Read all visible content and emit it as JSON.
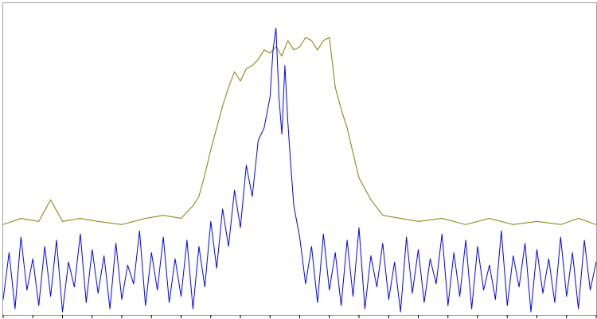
{
  "chart_data": {
    "type": "line",
    "title": "",
    "xlabel": "",
    "ylabel": "",
    "xlim": [
      0,
      100
    ],
    "ylim": [
      0,
      100
    ],
    "grid": false,
    "legend": "none",
    "x_ticks": [
      0,
      5,
      10,
      15,
      20,
      25,
      30,
      35,
      40,
      45,
      50,
      55,
      60,
      65,
      70,
      75,
      80,
      85,
      90,
      95,
      100
    ],
    "series": [
      {
        "color": "#808000",
        "x": [
          0,
          3,
          6,
          8,
          10,
          13,
          16,
          20,
          24,
          27,
          30,
          32,
          33,
          34,
          35,
          36,
          37,
          38,
          39,
          40,
          41,
          42,
          43,
          44,
          45,
          46,
          47,
          48,
          49,
          50,
          51,
          52,
          53,
          54,
          55,
          56,
          57,
          58,
          59,
          60,
          62,
          64,
          67,
          70,
          74,
          78,
          82,
          86,
          90,
          94,
          97,
          100
        ],
        "y": [
          29,
          31,
          30,
          37,
          30,
          31,
          30,
          29,
          31,
          32,
          31,
          35,
          38,
          45,
          53,
          60,
          67,
          73,
          78,
          75,
          79,
          80,
          82,
          85,
          84,
          86,
          83,
          88,
          85,
          86,
          89,
          88,
          85,
          88,
          89,
          73,
          66,
          60,
          52,
          44,
          37,
          32,
          31,
          30,
          31,
          29,
          31,
          29,
          30,
          29,
          31,
          29
        ]
      },
      {
        "color": "#0000ff",
        "x": [
          0,
          1,
          2,
          3,
          4,
          5,
          6,
          7,
          8,
          9,
          10,
          11,
          12,
          13,
          14,
          15,
          16,
          17,
          18,
          19,
          20,
          21,
          22,
          23,
          24,
          25,
          26,
          27,
          28,
          29,
          30,
          31,
          32,
          33,
          34,
          35,
          36,
          37,
          38,
          39,
          40,
          41,
          42,
          43,
          44,
          45,
          45.5,
          46,
          46.5,
          47,
          47.5,
          48,
          48.5,
          49,
          50,
          51,
          52,
          53,
          54,
          55,
          56,
          57,
          58,
          59,
          60,
          61,
          62,
          63,
          64,
          65,
          66,
          67,
          68,
          69,
          70,
          71,
          72,
          73,
          74,
          75,
          76,
          77,
          78,
          79,
          80,
          81,
          82,
          83,
          84,
          85,
          86,
          87,
          88,
          89,
          90,
          91,
          92,
          93,
          94,
          95,
          96,
          97,
          98,
          99,
          100
        ],
        "y": [
          5,
          20,
          2,
          25,
          8,
          18,
          3,
          22,
          6,
          24,
          1,
          17,
          9,
          26,
          4,
          21,
          7,
          19,
          2,
          23,
          5,
          16,
          10,
          27,
          3,
          20,
          8,
          25,
          4,
          18,
          6,
          24,
          2,
          22,
          9,
          30,
          15,
          34,
          22,
          40,
          28,
          48,
          38,
          56,
          60,
          70,
          85,
          92,
          70,
          58,
          80,
          62,
          48,
          35,
          25,
          10,
          22,
          4,
          26,
          8,
          20,
          3,
          24,
          6,
          28,
          2,
          19,
          9,
          23,
          5,
          17,
          1,
          25,
          7,
          21,
          4,
          18,
          10,
          26,
          3,
          20,
          6,
          24,
          2,
          22,
          8,
          16,
          5,
          27,
          3,
          19,
          9,
          23,
          1,
          21,
          7,
          18,
          4,
          25,
          6,
          20,
          2,
          24,
          8,
          17
        ]
      }
    ]
  }
}
